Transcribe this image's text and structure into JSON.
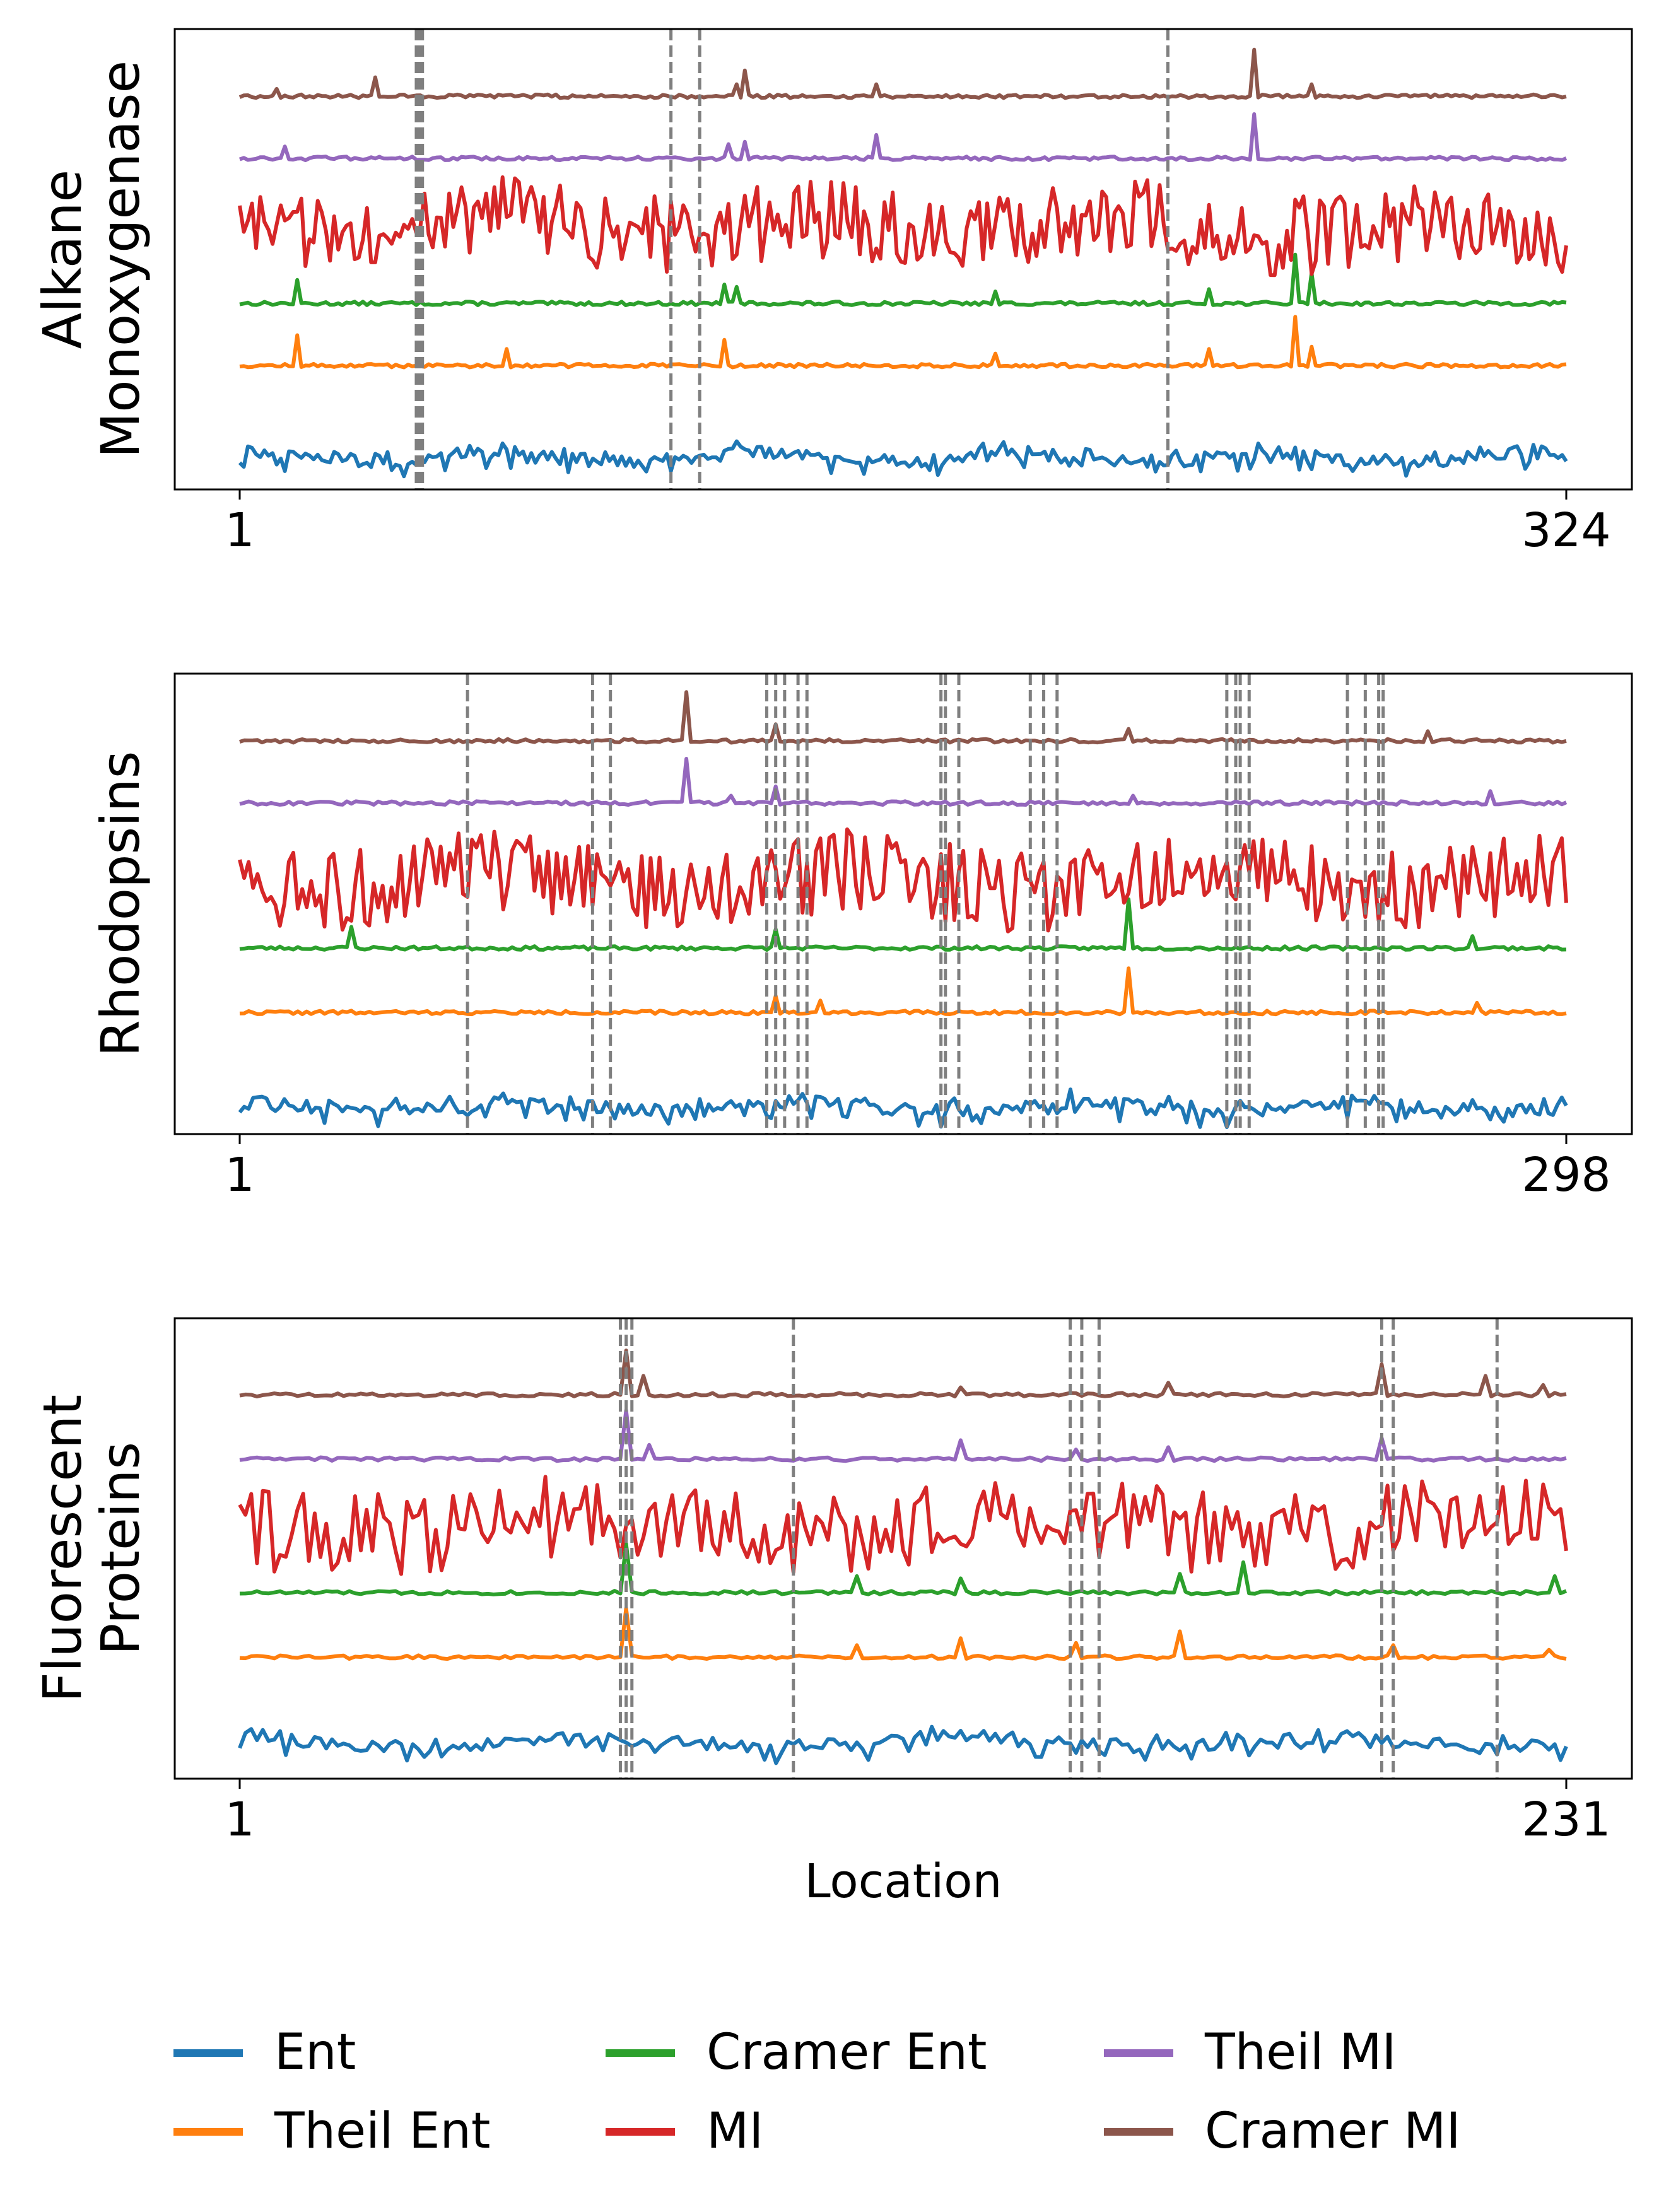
{
  "chart_data": [
    {
      "type": "line",
      "ylabel": [
        "Alkane",
        "Monoxygenase"
      ],
      "xlabel": "",
      "x_range": [
        1,
        324
      ],
      "xticks": [
        "1",
        "324"
      ],
      "grid": false,
      "vlines": [
        44,
        44.5,
        45,
        45.5,
        106,
        113,
        227
      ],
      "series": [
        {
          "name": "Ent",
          "color": "#1f77b4",
          "baseline": 0.89,
          "amp": 0.09,
          "noise": "drop",
          "spikes": [],
          "seed": 11
        },
        {
          "name": "Theil Ent",
          "color": "#ff7f0e",
          "baseline": 0.735,
          "amp": 0.008,
          "noise": "flat",
          "spikes": [
            [
              15,
              0.07
            ],
            [
              66,
              0.04
            ],
            [
              119,
              0.06
            ],
            [
              185,
              0.03
            ],
            [
              237,
              0.04
            ],
            [
              258,
              0.11
            ],
            [
              262,
              0.045
            ]
          ],
          "seed": 12
        },
        {
          "name": "Cramer Ent",
          "color": "#2ca02c",
          "baseline": 0.6,
          "amp": 0.008,
          "noise": "flat",
          "spikes": [
            [
              15,
              0.055
            ],
            [
              119,
              0.045
            ],
            [
              122,
              0.04
            ],
            [
              185,
              0.03
            ],
            [
              237,
              0.035
            ],
            [
              258,
              0.11
            ],
            [
              262,
              0.07
            ]
          ],
          "seed": 13
        },
        {
          "name": "MI",
          "color": "#d62728",
          "baseline": 0.43,
          "amp": 0.09,
          "noise": "both",
          "spikes": [],
          "seed": 14
        },
        {
          "name": "Theil MI",
          "color": "#9467bd",
          "baseline": 0.285,
          "amp": 0.008,
          "noise": "flat",
          "spikes": [
            [
              12,
              0.03
            ],
            [
              120,
              0.035
            ],
            [
              124,
              0.04
            ],
            [
              156,
              0.055
            ],
            [
              248,
              0.1
            ]
          ],
          "seed": 15
        },
        {
          "name": "Cramer MI",
          "color": "#8c564b",
          "baseline": 0.15,
          "amp": 0.008,
          "noise": "flat",
          "spikes": [
            [
              10,
              0.02
            ],
            [
              34,
              0.045
            ],
            [
              122,
              0.03
            ],
            [
              124,
              0.06
            ],
            [
              156,
              0.03
            ],
            [
              248,
              0.105
            ],
            [
              262,
              0.03
            ]
          ],
          "seed": 16
        }
      ]
    },
    {
      "type": "line",
      "ylabel": [
        "Rhodopsins"
      ],
      "xlabel": "",
      "x_range": [
        1,
        298
      ],
      "xticks": [
        "1",
        "298"
      ],
      "grid": false,
      "vlines": [
        52,
        80,
        84,
        119,
        121,
        123,
        126,
        128,
        158,
        159,
        162,
        178,
        181,
        184,
        222,
        224,
        225,
        227,
        249,
        253,
        256,
        257
      ],
      "series": [
        {
          "name": "Ent",
          "color": "#1f77b4",
          "baseline": 0.9,
          "amp": 0.09,
          "noise": "drop",
          "spikes": [],
          "seed": 21
        },
        {
          "name": "Theil Ent",
          "color": "#ff7f0e",
          "baseline": 0.74,
          "amp": 0.008,
          "noise": "flat",
          "spikes": [
            [
              121,
              0.04
            ],
            [
              131,
              0.03
            ],
            [
              200,
              0.1
            ],
            [
              278,
              0.025
            ]
          ],
          "seed": 22
        },
        {
          "name": "Cramer Ent",
          "color": "#2ca02c",
          "baseline": 0.6,
          "amp": 0.008,
          "noise": "flat",
          "spikes": [
            [
              26,
              0.05
            ],
            [
              121,
              0.045
            ],
            [
              200,
              0.11
            ],
            [
              277,
              0.03
            ]
          ],
          "seed": 23
        },
        {
          "name": "MI",
          "color": "#d62728",
          "baseline": 0.45,
          "amp": 0.09,
          "noise": "both",
          "spikes": [],
          "seed": 24
        },
        {
          "name": "Theil MI",
          "color": "#9467bd",
          "baseline": 0.285,
          "amp": 0.008,
          "noise": "flat",
          "spikes": [
            [
              101,
              0.1
            ],
            [
              111,
              0.02
            ],
            [
              121,
              0.04
            ],
            [
              201,
              0.02
            ],
            [
              281,
              0.03
            ]
          ],
          "seed": 25
        },
        {
          "name": "Cramer MI",
          "color": "#8c564b",
          "baseline": 0.15,
          "amp": 0.008,
          "noise": "flat",
          "spikes": [
            [
              101,
              0.11
            ],
            [
              121,
              0.04
            ],
            [
              200,
              0.03
            ],
            [
              267,
              0.025
            ]
          ],
          "seed": 26
        }
      ]
    },
    {
      "type": "line",
      "ylabel": [
        "Fluorescent",
        "Proteins"
      ],
      "xlabel": "Location",
      "x_range": [
        1,
        231
      ],
      "xticks": [
        "1",
        "231"
      ],
      "grid": false,
      "vlines": [
        67,
        68,
        69,
        97,
        145,
        147,
        150,
        199,
        201,
        219
      ],
      "series": [
        {
          "name": "Ent",
          "color": "#1f77b4",
          "baseline": 0.88,
          "amp": 0.09,
          "noise": "drop",
          "spikes": [],
          "seed": 31
        },
        {
          "name": "Theil Ent",
          "color": "#ff7f0e",
          "baseline": 0.74,
          "amp": 0.008,
          "noise": "flat",
          "spikes": [
            [
              68,
              0.11
            ],
            [
              108,
              0.03
            ],
            [
              126,
              0.045
            ],
            [
              146,
              0.035
            ],
            [
              164,
              0.06
            ],
            [
              201,
              0.03
            ],
            [
              228,
              0.02
            ]
          ],
          "seed": 32
        },
        {
          "name": "Cramer Ent",
          "color": "#2ca02c",
          "baseline": 0.6,
          "amp": 0.008,
          "noise": "flat",
          "spikes": [
            [
              68,
              0.11
            ],
            [
              108,
              0.04
            ],
            [
              126,
              0.035
            ],
            [
              164,
              0.045
            ],
            [
              175,
              0.07
            ],
            [
              229,
              0.04
            ]
          ],
          "seed": 33
        },
        {
          "name": "MI",
          "color": "#d62728",
          "baseline": 0.45,
          "amp": 0.09,
          "noise": "both",
          "spikes": [],
          "seed": 34
        },
        {
          "name": "Theil MI",
          "color": "#9467bd",
          "baseline": 0.31,
          "amp": 0.008,
          "noise": "flat",
          "spikes": [
            [
              68,
              0.11
            ],
            [
              72,
              0.035
            ],
            [
              126,
              0.045
            ],
            [
              146,
              0.025
            ],
            [
              162,
              0.03
            ],
            [
              199,
              0.05
            ]
          ],
          "seed": 35
        },
        {
          "name": "Cramer MI",
          "color": "#8c564b",
          "baseline": 0.17,
          "amp": 0.008,
          "noise": "flat",
          "spikes": [
            [
              68,
              0.1
            ],
            [
              71,
              0.045
            ],
            [
              126,
              0.02
            ],
            [
              162,
              0.03
            ],
            [
              199,
              0.07
            ],
            [
              217,
              0.045
            ],
            [
              227,
              0.025
            ]
          ],
          "seed": 36
        }
      ]
    }
  ],
  "legend": {
    "placement": "bottom",
    "items": [
      {
        "label": "Ent",
        "color": "#1f77b4"
      },
      {
        "label": "Theil Ent",
        "color": "#ff7f0e"
      },
      {
        "label": "Cramer Ent",
        "color": "#2ca02c"
      },
      {
        "label": "MI",
        "color": "#d62728"
      },
      {
        "label": "Theil MI",
        "color": "#9467bd"
      },
      {
        "label": "Cramer MI",
        "color": "#8c564b"
      }
    ]
  }
}
